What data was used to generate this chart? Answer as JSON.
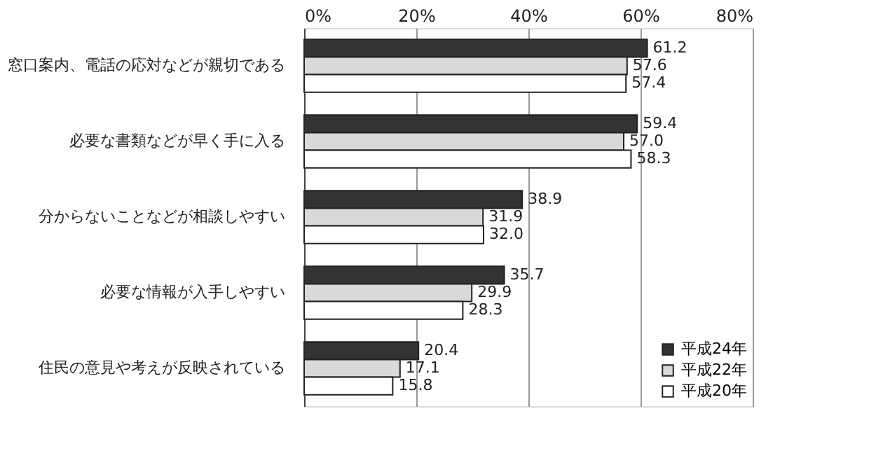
{
  "chart_data": {
    "type": "bar",
    "orientation": "horizontal",
    "categories": [
      "窓口案内、電話の応対などが親切である",
      "必要な書類などが早く手に入る",
      "分からないことなどが相談しやすい",
      "必要な情報が入手しやすい",
      "住民の意見や考えが反映されている"
    ],
    "series": [
      {
        "name": "平成24年",
        "color": "#333333",
        "values": [
          61.2,
          59.4,
          38.9,
          35.7,
          20.4
        ],
        "value_labels": [
          "61.2",
          "59.4",
          "38.9",
          "35.7",
          "20.4"
        ]
      },
      {
        "name": "平成22年",
        "color": "#d9d9d9",
        "values": [
          57.6,
          57.0,
          31.9,
          29.9,
          17.1
        ],
        "value_labels": [
          "57.6",
          "57.0",
          "31.9",
          "29.9",
          "17.1"
        ]
      },
      {
        "name": "平成20年",
        "color": "#ffffff",
        "values": [
          57.4,
          58.3,
          32.0,
          28.3,
          15.8
        ],
        "value_labels": [
          "57.4",
          "58.3",
          "32.0",
          "28.3",
          "15.8"
        ]
      }
    ],
    "xlim": [
      0,
      80
    ],
    "xticks": [
      {
        "value": 0,
        "label": "0%"
      },
      {
        "value": 20,
        "label": "20%"
      },
      {
        "value": 40,
        "label": "40%"
      },
      {
        "value": 60,
        "label": "60%"
      },
      {
        "value": 80,
        "label": "80%"
      }
    ],
    "grid": "x",
    "legend": "bottom right"
  }
}
